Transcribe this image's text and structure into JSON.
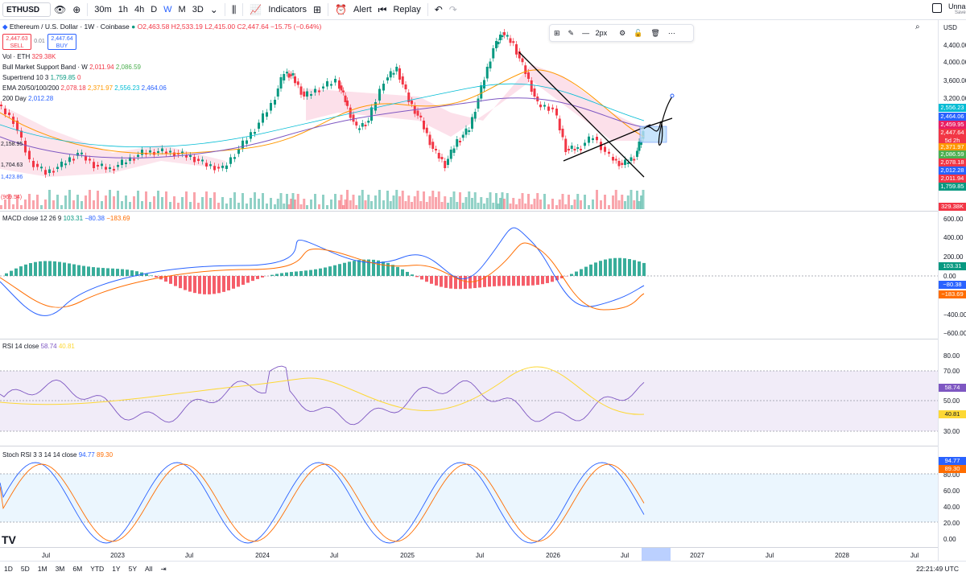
{
  "toolbar": {
    "symbol": "ETHUSD",
    "intervals": [
      "30m",
      "1h",
      "4h",
      "D",
      "W",
      "M",
      "3D"
    ],
    "active_interval": "W",
    "indicators_label": "Indicators",
    "alert_label": "Alert",
    "replay_label": "Replay",
    "layout_name": "Unnam",
    "save_label": "Save"
  },
  "legend": {
    "title": "Ethereum / U.S. Dollar · 1W · Coinbase",
    "ohlc": "O2,463.58 H2,533.19 L2,415.00 C2,447.64 −15.75 (−0.64%)",
    "sell_price": "2,447.63",
    "sell_label": "SELL",
    "spread": "0.01",
    "buy_price": "2,447.64",
    "buy_label": "BUY",
    "vol": {
      "name": "Vol · ETH",
      "value": "329.38K"
    },
    "bull_band": {
      "name": "Bull Market Support Band · W",
      "v1": "2,011.94",
      "v2": "2,086.59"
    },
    "supertrend": {
      "name": "Supertrend 10 3",
      "v1": "1,759.85",
      "v2": "0"
    },
    "ema": {
      "name": "EMA 20/50/100/200",
      "v1": "2,078.18",
      "v2": "2,371.97",
      "v3": "2,556.23",
      "v4": "2,464.06"
    },
    "day200": {
      "name": "200 Day",
      "v1": "2,012.28"
    },
    "left_labels": [
      "2,158.95",
      "1,704.63",
      "1,423.86",
      "(969.54)"
    ]
  },
  "drawing_toolbar": {
    "width_label": "2px"
  },
  "price_axis": {
    "currency": "USD",
    "ticks": [
      "4,400.00",
      "4,000.00",
      "3,600.00",
      "3,200.00"
    ],
    "tags": [
      {
        "text": "2,556.23",
        "color": "#00bcd4"
      },
      {
        "text": "2,464.06",
        "color": "#2962ff"
      },
      {
        "text": "2,459.95",
        "color": "#e91e63"
      },
      {
        "text": "2,447.64",
        "color": "#f23645"
      },
      {
        "text": "5d 2h",
        "color": "#f23645"
      },
      {
        "text": "2,371.97",
        "color": "#ff9800"
      },
      {
        "text": "2,086.59",
        "color": "#4caf50"
      },
      {
        "text": "2,078.18",
        "color": "#f23645"
      },
      {
        "text": "2,012.28",
        "color": "#2962ff"
      },
      {
        "text": "2,011.94",
        "color": "#f23645"
      },
      {
        "text": "1,759.85",
        "color": "#089981"
      }
    ],
    "vol_tag": "329.38K"
  },
  "macd": {
    "legend_name": "MACD close 12 26 9",
    "v1": "103.31",
    "v2": "−80.38",
    "v3": "−183.69",
    "ticks": [
      "600.00",
      "400.00",
      "200.00",
      "0.00",
      "−400.00",
      "−600.00"
    ],
    "tags": [
      {
        "text": "103.31",
        "color": "#089981"
      },
      {
        "text": "−80.38",
        "color": "#2962ff"
      },
      {
        "text": "−183.69",
        "color": "#ff6d00"
      }
    ]
  },
  "rsi": {
    "legend_name": "RSI 14 close",
    "v1": "58.74",
    "v2": "40.81",
    "ticks": [
      "80.00",
      "70.00",
      "50.00",
      "30.00"
    ],
    "tags": [
      {
        "text": "58.74",
        "color": "#7e57c2"
      },
      {
        "text": "40.81",
        "color": "#fdd835"
      }
    ]
  },
  "stoch": {
    "legend_name": "Stoch RSI 3 3 14 14 close",
    "v1": "94.77",
    "v2": "89.30",
    "ticks": [
      "80.00",
      "60.00",
      "40.00",
      "20.00",
      "0.00"
    ],
    "tags": [
      {
        "text": "94.77",
        "color": "#2962ff"
      },
      {
        "text": "89.30",
        "color": "#ff6d00"
      }
    ]
  },
  "time_axis": [
    "Jul",
    "2023",
    "Jul",
    "2024",
    "Jul",
    "2025",
    "Jul",
    "2026",
    "Jul",
    "2027",
    "Jul",
    "2028",
    "Jul"
  ],
  "clock": "22:21:49 UTC",
  "ranges": [
    "1D",
    "5D",
    "1M",
    "3M",
    "6M",
    "YTD",
    "1Y",
    "5Y",
    "All"
  ],
  "colors": {
    "up": "#089981",
    "down": "#f23645",
    "accent": "#2962ff"
  }
}
